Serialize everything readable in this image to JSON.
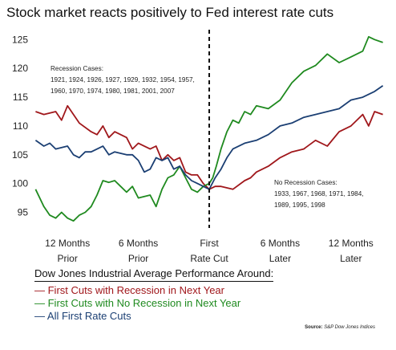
{
  "title": "Stock market reacts positively to Fed interest rate cuts",
  "chart_data": {
    "type": "line",
    "title": "Stock market reacts positively to Fed interest rate cuts",
    "ylim": [
      92,
      127
    ],
    "yticks": [
      95,
      100,
      105,
      110,
      115,
      120,
      125
    ],
    "xlim": [
      -15,
      15
    ],
    "xticks": [
      {
        "x": -12,
        "label1": "12 Months",
        "label2": "Prior"
      },
      {
        "x": -6,
        "label1": "6 Months",
        "label2": "Prior"
      },
      {
        "x": 0,
        "label1": "First",
        "label2": "Rate Cut"
      },
      {
        "x": 6,
        "label1": "6 Months",
        "label2": "Later"
      },
      {
        "x": 12,
        "label1": "12 Months",
        "label2": "Later"
      }
    ],
    "x_unit": "months relative to first rate cut",
    "vertical_line_x": 0,
    "grid": false,
    "series": [
      {
        "name": "First Cuts with Recession in Next Year",
        "color": "#a0171b",
        "x": [
          -14.7,
          -14,
          -13,
          -12.5,
          -12,
          -11,
          -10,
          -9.5,
          -9,
          -8.5,
          -8,
          -7,
          -6.5,
          -6,
          -5,
          -4.5,
          -4,
          -3.5,
          -3,
          -2.5,
          -2,
          -1.5,
          -1,
          -0.5,
          0,
          0.5,
          1,
          2,
          3,
          3.5,
          4,
          5,
          6,
          7,
          8,
          9,
          10,
          11,
          12,
          13,
          13.5,
          14,
          14.7
        ],
        "y": [
          112.5,
          112,
          112.5,
          111,
          113.5,
          110.5,
          109,
          108.5,
          110,
          108,
          109,
          108,
          106,
          107,
          106,
          106.5,
          104,
          105,
          104,
          104.5,
          102,
          101.5,
          101.5,
          100,
          99,
          99.5,
          99.5,
          99,
          100.5,
          101,
          102,
          103,
          104.5,
          105.5,
          106,
          107.5,
          106.5,
          109,
          110,
          112,
          110,
          112.5,
          112
        ]
      },
      {
        "name": "First Cuts with No Recession in Next Year",
        "color": "#1f8a1f",
        "x": [
          -14.7,
          -14,
          -13.5,
          -13,
          -12.5,
          -12,
          -11.5,
          -11,
          -10.5,
          -10,
          -9.5,
          -9,
          -8.5,
          -8,
          -7.5,
          -7,
          -6.5,
          -6,
          -5,
          -4.5,
          -4,
          -3.5,
          -3,
          -2.5,
          -2,
          -1.5,
          -1,
          -0.5,
          0,
          0.3,
          0.6,
          1,
          1.5,
          2,
          2.5,
          3,
          3.5,
          4,
          5,
          6,
          7,
          8,
          9,
          10,
          11,
          12,
          13,
          13.5,
          14,
          14.7
        ],
        "y": [
          99,
          96,
          94.5,
          94,
          95,
          94,
          93.5,
          94.5,
          95,
          96,
          98,
          100.5,
          100.2,
          100.5,
          99.5,
          98.5,
          99.5,
          97.5,
          98,
          96,
          99,
          101,
          101.5,
          103,
          101,
          99,
          98.5,
          99.5,
          100,
          101,
          103,
          106,
          109,
          111,
          110.5,
          112.5,
          112,
          113.5,
          113,
          114.5,
          117.5,
          119.5,
          120.5,
          122.5,
          121,
          122,
          123,
          125.5,
          125,
          124.5
        ]
      },
      {
        "name": "All First Rate Cuts",
        "color": "#1b3f73",
        "x": [
          -14.7,
          -14,
          -13.5,
          -13,
          -12,
          -11.5,
          -11,
          -10.5,
          -10,
          -9,
          -8.5,
          -8,
          -7,
          -6.5,
          -6,
          -5.5,
          -5,
          -4.5,
          -4,
          -3.5,
          -3,
          -2.5,
          -2,
          -1.5,
          -1,
          -0.5,
          0,
          0.5,
          1,
          1.5,
          2,
          3,
          4,
          5,
          6,
          7,
          8,
          9,
          10,
          11,
          12,
          13,
          14,
          14.7
        ],
        "y": [
          107.5,
          106.5,
          107,
          106,
          106.5,
          105,
          104.5,
          105.5,
          105.5,
          106.5,
          105,
          105.5,
          105,
          105,
          104,
          102,
          102.5,
          104.5,
          104,
          104.5,
          102.5,
          103,
          101.5,
          100.5,
          100,
          99.5,
          99,
          101,
          102.5,
          104.5,
          106,
          107,
          107.5,
          108.5,
          110,
          110.5,
          111.5,
          112,
          112.5,
          113,
          114.5,
          115,
          116,
          117
        ]
      }
    ],
    "annotations": {
      "recession": {
        "heading": "Recession Cases:",
        "lines": [
          "1921, 1924, 1926, 1927, 1929, 1932, 1954, 1957,",
          "1960, 1970, 1974, 1980, 1981, 2001, 2007"
        ]
      },
      "no_recession": {
        "heading": "No Recession Cases:",
        "lines": [
          "1933, 1967, 1968, 1971, 1984,",
          "1989, 1995, 1998"
        ]
      }
    }
  },
  "legend": {
    "title": "Dow Jones Industrial Average Performance Around:",
    "items": [
      {
        "label": "First Cuts with Recession in Next Year",
        "color": "#a0171b"
      },
      {
        "label": "First Cuts with No Recession in Next Year",
        "color": "#1f8a1f"
      },
      {
        "label": "All First Rate Cuts",
        "color": "#1b3f73"
      }
    ]
  },
  "source": {
    "label": "Source:",
    "text": "S&P Dow Jones Indices"
  }
}
